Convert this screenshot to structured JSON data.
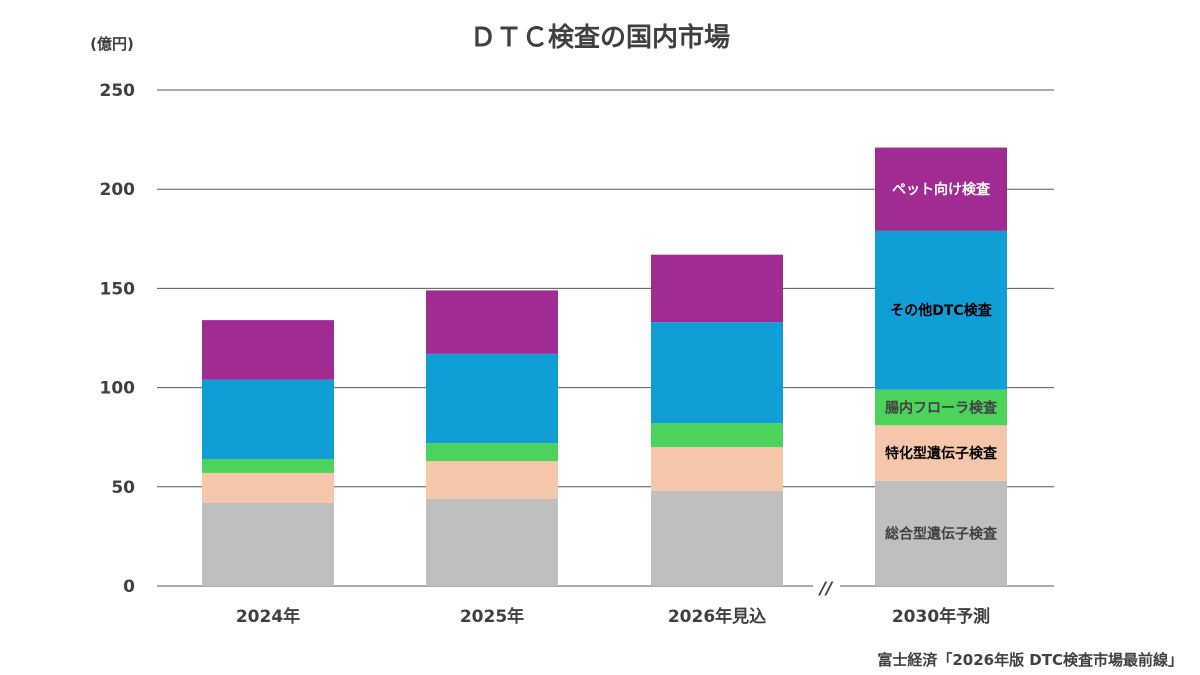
{
  "chart_data": {
    "type": "bar",
    "stacked": true,
    "title": "ＤＴＣ検査の国内市場",
    "ylabel": "(億円)",
    "ylim": [
      0,
      250
    ],
    "yticks": [
      0,
      50,
      100,
      150,
      200,
      250
    ],
    "grid": true,
    "categories": [
      "2024年",
      "2025年",
      "2026年見込",
      "2030年予測"
    ],
    "axis_break_mark": "//",
    "series": [
      {
        "name": "総合型遺伝子検査",
        "color": "#bfbfbf",
        "label_color": "#404040",
        "values": [
          42,
          44,
          48,
          53
        ]
      },
      {
        "name": "特化型遺伝子検査",
        "color": "#f5c6aa",
        "label_color": "#000000",
        "values": [
          15,
          19,
          22,
          28
        ]
      },
      {
        "name": "腸内フローラ検査",
        "color": "#4cd35c",
        "label_color": "#404040",
        "values": [
          7,
          9,
          12,
          18
        ]
      },
      {
        "name": "その他DTC検査",
        "color": "#0f9ed5",
        "label_color": "#000000",
        "values": [
          40,
          45,
          51,
          80
        ]
      },
      {
        "name": "ペット向け検査",
        "color": "#a02b93",
        "label_color": "#ffffff",
        "values": [
          30,
          32,
          34,
          42
        ]
      }
    ]
  },
  "source": "富士経済「2026年版 DTC検査市場最前線」"
}
